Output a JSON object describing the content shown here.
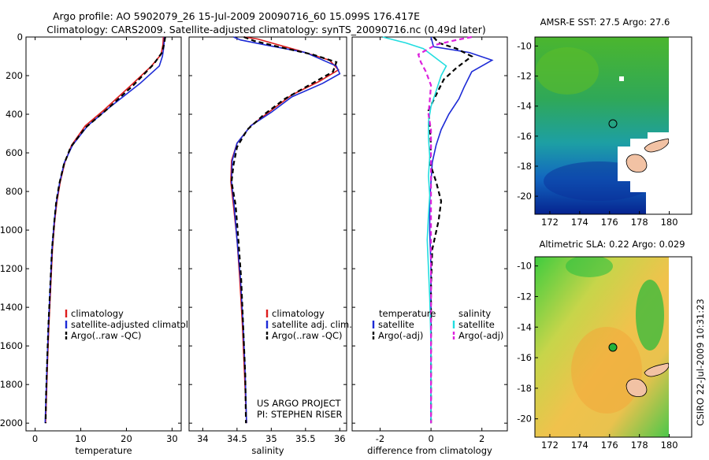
{
  "header": {
    "title_line1": "Argo profile: AO 5902079_26 15-Jul-2009 20090716_60 15.099S 176.417E",
    "title_line2": "Climatology: CARS2009. Satellite-adjusted climatology: synTS_20090716.nc (0.49d later)"
  },
  "credits": {
    "project": "US ARGO PROJECT",
    "pi": "PI: STEPHEN RISER",
    "stamp": "CSIRO 22-Jul-2009 10:31:23"
  },
  "colors": {
    "climatology": "#dd1c1c",
    "satellite": "#1c2ad6",
    "argo": "#000000",
    "sal_satellite": "#22dde0",
    "sal_argo": "#dd22dd",
    "land": "#f2c2a4"
  },
  "chart_data": [
    {
      "id": "temperature",
      "type": "line",
      "xlabel": "temperature",
      "ylabel": "",
      "xlim": [
        -2,
        32
      ],
      "ylim": [
        2040,
        0
      ],
      "xticks": [
        0,
        10,
        20,
        30
      ],
      "yticks": [
        0,
        200,
        400,
        600,
        800,
        1000,
        1200,
        1400,
        1600,
        1800,
        2000
      ],
      "legend": [
        "climatology",
        "satellite-adjusted climatology",
        "Argo(..raw -QC)"
      ],
      "legend_position": "bottom-left",
      "series": [
        {
          "name": "climatology",
          "style": "solid",
          "color_key": "climatology",
          "points": [
            [
              28.1,
              0
            ],
            [
              28.0,
              40
            ],
            [
              27.6,
              90
            ],
            [
              25.5,
              150
            ],
            [
              21.0,
              250
            ],
            [
              15.0,
              380
            ],
            [
              11.0,
              460
            ],
            [
              8.0,
              560
            ],
            [
              6.5,
              650
            ],
            [
              5.5,
              750
            ],
            [
              4.8,
              850
            ],
            [
              4.3,
              950
            ],
            [
              3.8,
              1100
            ],
            [
              3.4,
              1300
            ],
            [
              3.0,
              1500
            ],
            [
              2.7,
              1700
            ],
            [
              2.5,
              1850
            ],
            [
              2.3,
              2000
            ]
          ]
        },
        {
          "name": "satellite-adjusted climatology",
          "style": "solid",
          "color_key": "satellite",
          "points": [
            [
              28.3,
              0
            ],
            [
              28.2,
              50
            ],
            [
              27.9,
              100
            ],
            [
              27.2,
              150
            ],
            [
              23.0,
              240
            ],
            [
              16.0,
              370
            ],
            [
              11.5,
              460
            ],
            [
              8.2,
              560
            ],
            [
              6.4,
              650
            ],
            [
              5.4,
              750
            ],
            [
              4.7,
              850
            ],
            [
              4.2,
              950
            ],
            [
              3.7,
              1100
            ],
            [
              3.3,
              1300
            ],
            [
              2.9,
              1500
            ],
            [
              2.6,
              1700
            ],
            [
              2.4,
              1850
            ],
            [
              2.2,
              2000
            ]
          ]
        },
        {
          "name": "Argo(..raw -QC)",
          "style": "dashed",
          "color_key": "argo",
          "points": [
            [
              28.5,
              0
            ],
            [
              28.3,
              30
            ],
            [
              27.8,
              80
            ],
            [
              26.0,
              140
            ],
            [
              21.5,
              250
            ],
            [
              15.5,
              380
            ],
            [
              11.0,
              470
            ],
            [
              7.8,
              570
            ],
            [
              6.3,
              660
            ],
            [
              5.3,
              760
            ],
            [
              4.6,
              860
            ],
            [
              4.2,
              960
            ],
            [
              3.7,
              1100
            ],
            [
              3.3,
              1300
            ],
            [
              2.9,
              1500
            ],
            [
              2.6,
              1700
            ],
            [
              2.4,
              1850
            ],
            [
              2.3,
              2000
            ]
          ]
        }
      ]
    },
    {
      "id": "salinity",
      "type": "line",
      "xlabel": "salinity",
      "ylabel": "",
      "xlim": [
        33.8,
        36.1
      ],
      "ylim": [
        2040,
        0
      ],
      "xticks": [
        34,
        34.5,
        35,
        35.5,
        36
      ],
      "legend": [
        "climatology",
        "satellite adj. clim.",
        "Argo(..raw -QC)"
      ],
      "legend_position": "bottom-right",
      "series": [
        {
          "name": "climatology",
          "style": "solid",
          "color_key": "climatology",
          "points": [
            [
              34.6,
              0
            ],
            [
              34.8,
              10
            ],
            [
              35.0,
              30
            ],
            [
              35.4,
              70
            ],
            [
              35.85,
              120
            ],
            [
              35.98,
              170
            ],
            [
              35.7,
              230
            ],
            [
              35.3,
              300
            ],
            [
              35.0,
              380
            ],
            [
              34.7,
              460
            ],
            [
              34.5,
              550
            ],
            [
              34.42,
              640
            ],
            [
              34.41,
              750
            ],
            [
              34.45,
              880
            ],
            [
              34.5,
              1050
            ],
            [
              34.54,
              1250
            ],
            [
              34.58,
              1500
            ],
            [
              34.61,
              1750
            ],
            [
              34.64,
              2000
            ]
          ]
        },
        {
          "name": "satellite adj. clim.",
          "style": "solid",
          "color_key": "satellite",
          "points": [
            [
              34.45,
              0
            ],
            [
              34.55,
              15
            ],
            [
              34.9,
              40
            ],
            [
              35.5,
              80
            ],
            [
              35.95,
              150
            ],
            [
              36.0,
              190
            ],
            [
              35.75,
              240
            ],
            [
              35.3,
              310
            ],
            [
              35.0,
              390
            ],
            [
              34.7,
              460
            ],
            [
              34.5,
              550
            ],
            [
              34.43,
              640
            ],
            [
              34.42,
              750
            ],
            [
              34.46,
              880
            ],
            [
              34.5,
              1050
            ],
            [
              34.55,
              1250
            ],
            [
              34.59,
              1500
            ],
            [
              34.62,
              1750
            ],
            [
              34.64,
              2000
            ]
          ]
        },
        {
          "name": "Argo(..raw -QC)",
          "style": "dashed",
          "color_key": "argo",
          "points": [
            [
              34.6,
              0
            ],
            [
              34.75,
              20
            ],
            [
              35.1,
              50
            ],
            [
              35.6,
              90
            ],
            [
              35.95,
              130
            ],
            [
              35.9,
              180
            ],
            [
              35.6,
              240
            ],
            [
              35.2,
              320
            ],
            [
              34.9,
              400
            ],
            [
              34.65,
              480
            ],
            [
              34.5,
              570
            ],
            [
              34.45,
              660
            ],
            [
              34.42,
              750
            ],
            [
              34.48,
              870
            ],
            [
              34.52,
              1050
            ],
            [
              34.56,
              1250
            ],
            [
              34.59,
              1500
            ],
            [
              34.62,
              1750
            ],
            [
              34.63,
              2000
            ]
          ]
        }
      ]
    },
    {
      "id": "difference",
      "type": "line",
      "xlabel": "difference from climatology",
      "ylabel": "",
      "xlim": [
        -3.1,
        3.0
      ],
      "ylim": [
        2040,
        0
      ],
      "xticks": [
        -2,
        0,
        2
      ],
      "legend_groups": [
        {
          "title": "temperature",
          "items": [
            "satellite",
            "Argo(-adj)"
          ]
        },
        {
          "title": "salinity",
          "items": [
            "satellite",
            "Argo(-adj)"
          ]
        }
      ],
      "legend_position": "bottom",
      "series": [
        {
          "name": "temperature satellite",
          "style": "solid",
          "color_key": "satellite",
          "points": [
            [
              0,
              0
            ],
            [
              0.1,
              50
            ],
            [
              1.5,
              80
            ],
            [
              2.4,
              120
            ],
            [
              1.6,
              180
            ],
            [
              1.3,
              260
            ],
            [
              1.1,
              320
            ],
            [
              0.7,
              400
            ],
            [
              0.4,
              480
            ],
            [
              0.2,
              560
            ],
            [
              0.05,
              650
            ],
            [
              0.0,
              750
            ],
            [
              -0.05,
              850
            ],
            [
              -0.05,
              1000
            ],
            [
              0,
              1200
            ],
            [
              0,
              1500
            ],
            [
              0,
              1800
            ],
            [
              0,
              2000
            ]
          ]
        },
        {
          "name": "temperature Argo(-adj)",
          "style": "dashed",
          "color_key": "argo",
          "points": [
            [
              0.1,
              0
            ],
            [
              0.3,
              30
            ],
            [
              1.0,
              60
            ],
            [
              1.6,
              100
            ],
            [
              1.0,
              160
            ],
            [
              0.5,
              220
            ],
            [
              0.2,
              300
            ],
            [
              -0.1,
              380
            ],
            [
              -0.05,
              460
            ],
            [
              0,
              560
            ],
            [
              -0.05,
              650
            ],
            [
              0.2,
              750
            ],
            [
              0.4,
              850
            ],
            [
              0.3,
              950
            ],
            [
              0.05,
              1100
            ],
            [
              0,
              1300
            ],
            [
              0,
              1600
            ],
            [
              0,
              2000
            ]
          ]
        },
        {
          "name": "salinity satellite",
          "style": "solid",
          "color_key": "sal_satellite",
          "points": [
            [
              -1.9,
              0
            ],
            [
              -1.0,
              30
            ],
            [
              -0.3,
              60
            ],
            [
              0.2,
              110
            ],
            [
              0.6,
              150
            ],
            [
              0.4,
              200
            ],
            [
              0.2,
              280
            ],
            [
              0.0,
              360
            ],
            [
              -0.1,
              440
            ],
            [
              -0.1,
              520
            ],
            [
              -0.05,
              620
            ],
            [
              -0.1,
              720
            ],
            [
              -0.05,
              820
            ],
            [
              -0.1,
              920
            ],
            [
              -0.15,
              1050
            ],
            [
              -0.1,
              1200
            ],
            [
              -0.05,
              1350
            ],
            [
              0,
              1600
            ],
            [
              0,
              2000
            ]
          ]
        },
        {
          "name": "salinity Argo(-adj)",
          "style": "dashed",
          "color_key": "sal_argo",
          "points": [
            [
              1.6,
              0
            ],
            [
              1.0,
              15
            ],
            [
              0.2,
              40
            ],
            [
              -0.5,
              90
            ],
            [
              -0.4,
              130
            ],
            [
              -0.2,
              180
            ],
            [
              0.0,
              250
            ],
            [
              -0.05,
              330
            ],
            [
              -0.1,
              400
            ],
            [
              0,
              480
            ],
            [
              0,
              560
            ],
            [
              0,
              650
            ],
            [
              0,
              800
            ],
            [
              0,
              1000
            ],
            [
              0,
              1300
            ],
            [
              0,
              1600
            ],
            [
              0,
              2000
            ]
          ]
        }
      ]
    },
    {
      "id": "sst_map",
      "type": "heatmap",
      "title": "AMSR-E SST: 27.5 Argo: 27.6",
      "xlim": [
        171,
        181.5
      ],
      "ylim": [
        -21.2,
        -9.4
      ],
      "xticks": [
        172,
        174,
        176,
        178,
        180
      ],
      "yticks": [
        -10,
        -12,
        -14,
        -16,
        -18,
        -20
      ],
      "float_position": [
        176.4,
        -15.1
      ],
      "color_range": [
        "#1a8c2e",
        "#18a1a6",
        "#001a8c"
      ]
    },
    {
      "id": "sla_map",
      "type": "heatmap",
      "title": "Altimetric SLA: 0.22 Argo: 0.029",
      "xlim": [
        171,
        181.5
      ],
      "ylim": [
        -21.2,
        -9.4
      ],
      "xticks": [
        172,
        174,
        176,
        178,
        180
      ],
      "yticks": [
        -10,
        -12,
        -14,
        -16,
        -18,
        -20
      ],
      "float_position": [
        176.4,
        -15.1
      ],
      "color_range": [
        "#22b836",
        "#e8cc50",
        "#f2a338"
      ]
    }
  ]
}
